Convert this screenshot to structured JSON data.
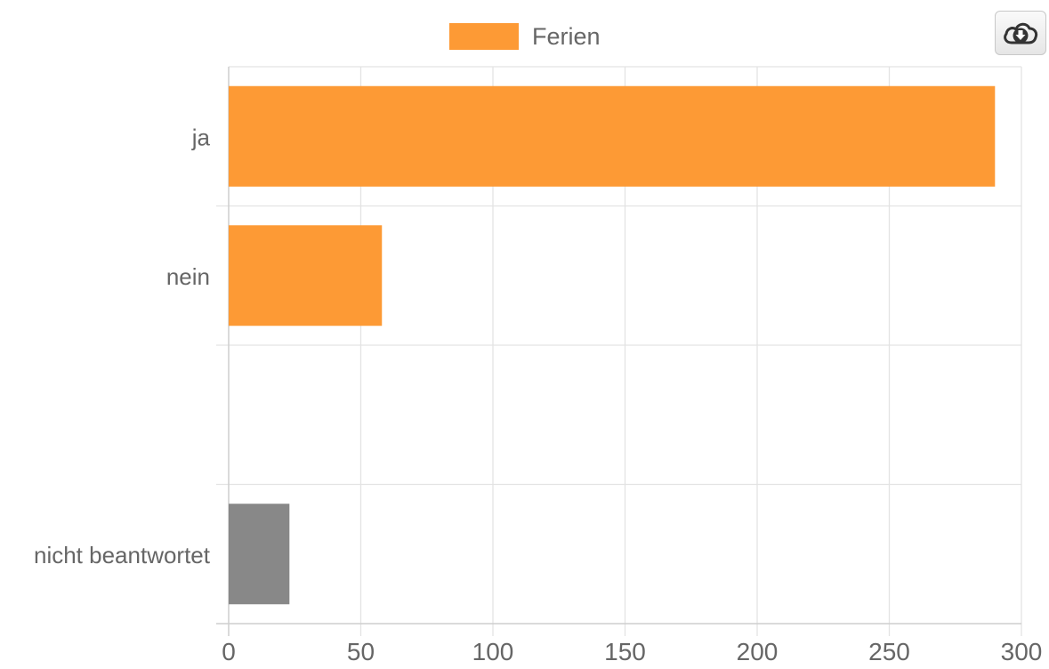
{
  "chart_data": {
    "type": "bar",
    "orientation": "horizontal",
    "categories": [
      "ja",
      "nein",
      "",
      "nicht beantwortet"
    ],
    "values": [
      290,
      58,
      0,
      23
    ],
    "bar_colors": [
      "#fd9a35",
      "#fd9a35",
      "#fd9a35",
      "#888888"
    ],
    "series": [
      {
        "name": "Ferien",
        "color": "#fd9a35",
        "values": [
          290,
          58,
          0,
          23
        ]
      }
    ],
    "xlim": [
      0,
      300
    ],
    "x_ticks": [
      "0",
      "50",
      "100",
      "150",
      "200",
      "250",
      "300"
    ],
    "grid": true,
    "legend_position": "top-center"
  },
  "toolbar": {
    "download_icon": "cloud-download-icon"
  },
  "colors": {
    "accent": "#fd9a35",
    "unanswered": "#888888",
    "grid": "#e3e3e3",
    "axis_text": "#666666"
  }
}
